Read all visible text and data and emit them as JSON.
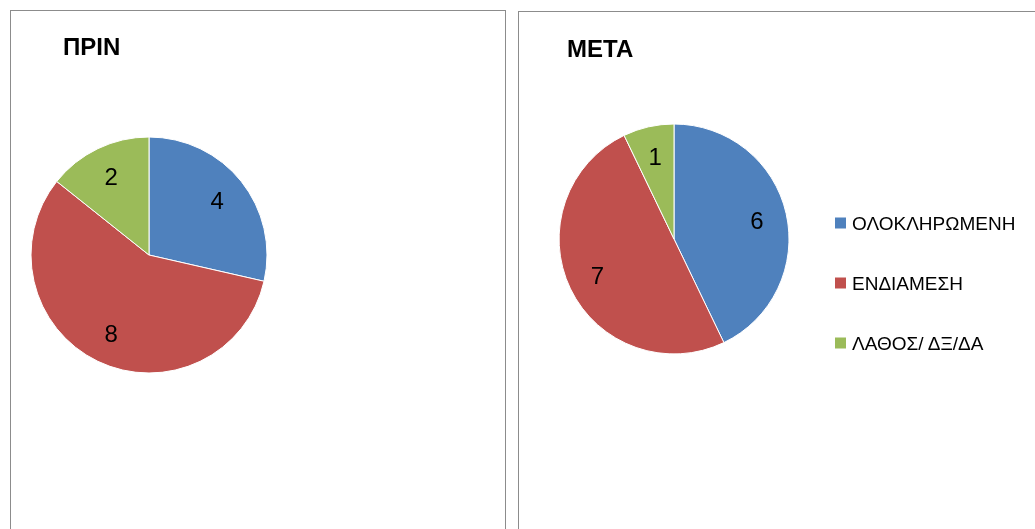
{
  "chart_data": [
    {
      "type": "pie",
      "title": "ΠΡΙΝ",
      "categories": [
        null,
        null,
        null
      ],
      "values": [
        4,
        8,
        2
      ],
      "colors": [
        "#4f81bd",
        "#c0504d",
        "#9bbb59"
      ],
      "data_labels": true,
      "legend": false
    },
    {
      "type": "pie",
      "title": "ΜΕΤΑ",
      "categories": [
        "ΟΛΟΚΛΗΡΩΜΕΝΗ",
        "ΕΝΔΙΑΜΕΣΗ",
        "ΛΑΘΟΣ/ ΔΞ/ΔΑ"
      ],
      "values": [
        6,
        7,
        1
      ],
      "colors": [
        "#4f81bd",
        "#c0504d",
        "#9bbb59"
      ],
      "data_labels": true,
      "legend": "right"
    }
  ]
}
